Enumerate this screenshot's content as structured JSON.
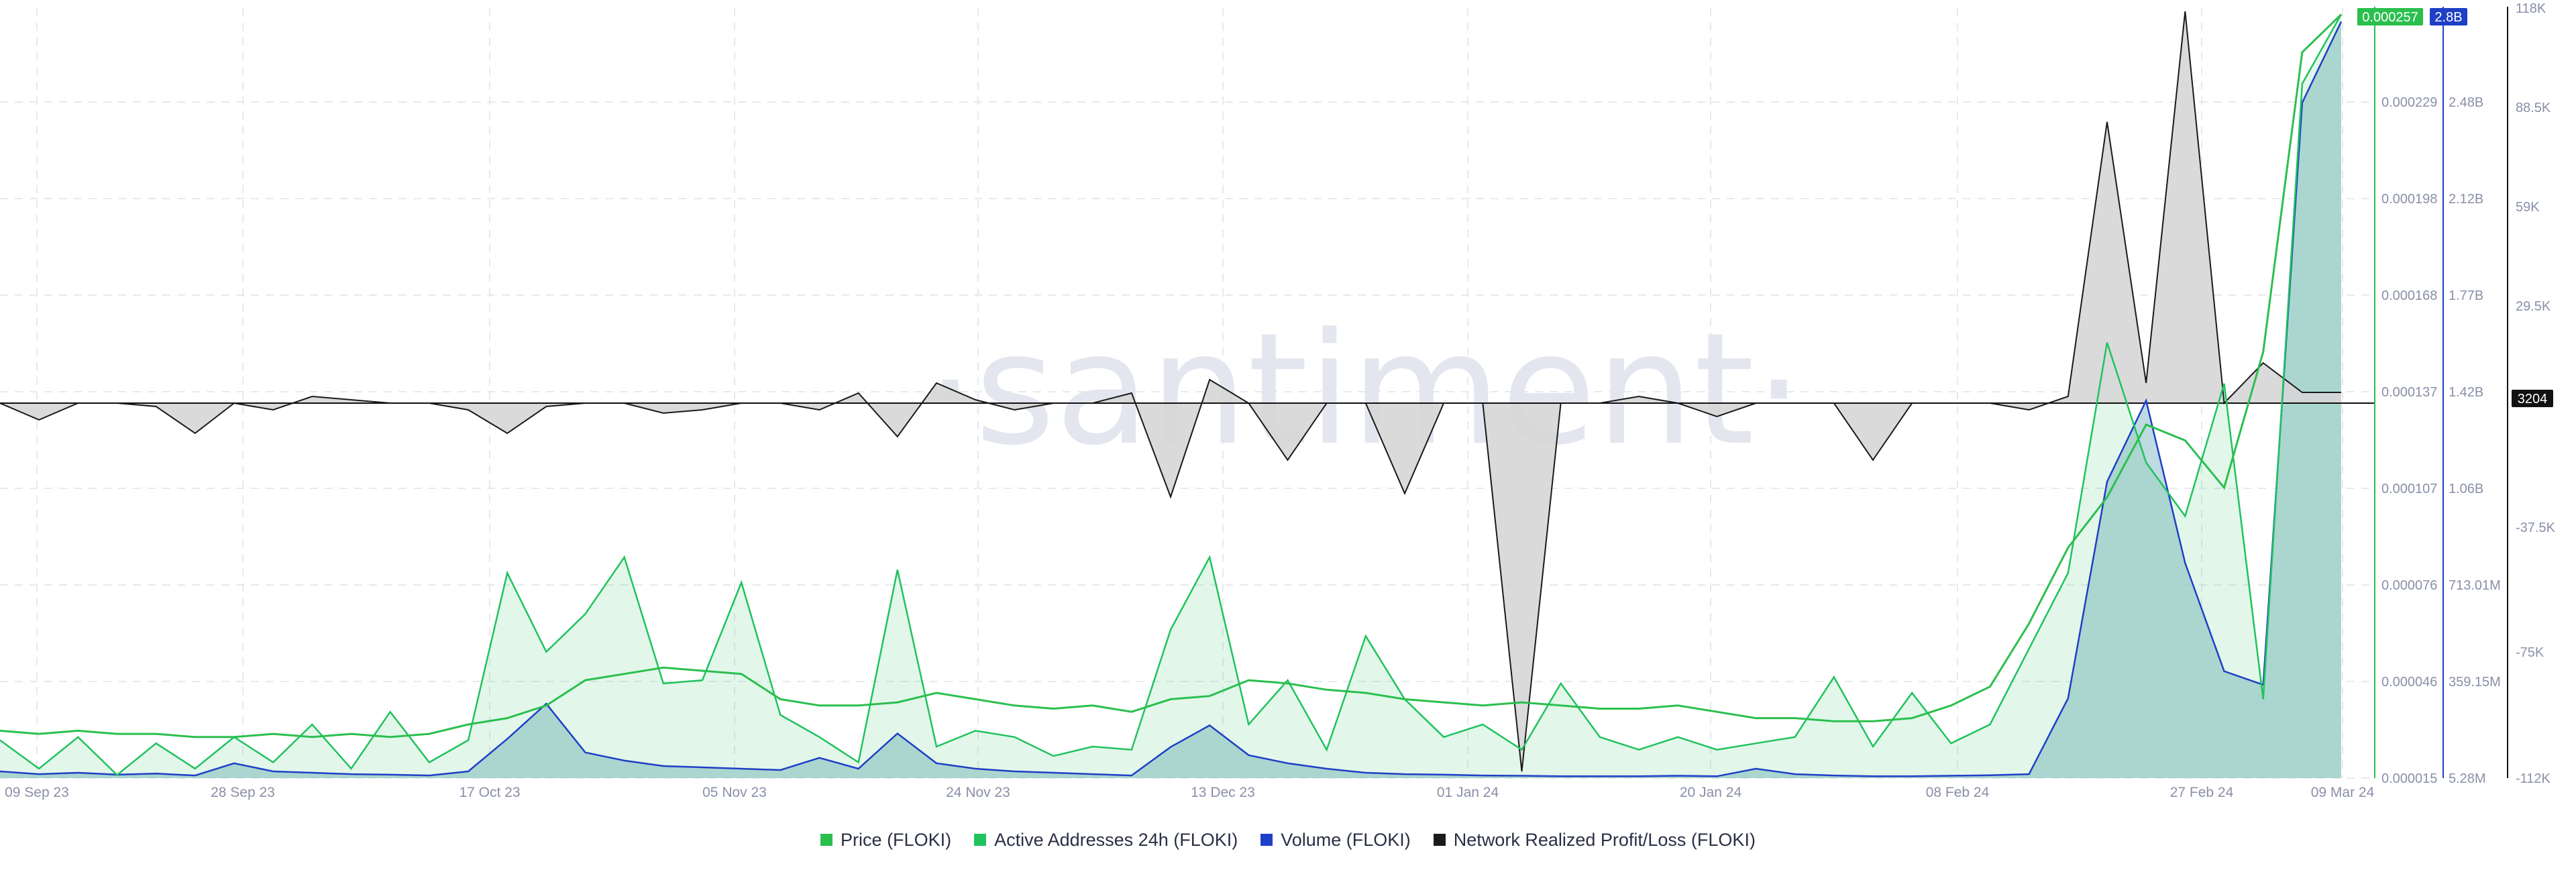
{
  "watermark": "·santiment·",
  "legend": [
    {
      "label": "Price (FLOKI)",
      "color": "#2bbf4e"
    },
    {
      "label": "Active Addresses 24h (FLOKI)",
      "color": "#21c25e"
    },
    {
      "label": "Volume (FLOKI)",
      "color": "#1f3fc7"
    },
    {
      "label": "Network Realized Profit/Loss (FLOKI)",
      "color": "#1a1a1a"
    }
  ],
  "colors": {
    "price": "#2bbf4e",
    "active_addresses": "#21c25e",
    "volume_line": "#1f3fc7",
    "volume_fill": "#b4d3dc",
    "nrpl": "#1a1a1a",
    "nrpl_fill": "#d6d6d6"
  },
  "chart_data": {
    "type": "line",
    "x_ticks": [
      "09 Sep 23",
      "28 Sep 23",
      "17 Oct 23",
      "05 Nov 23",
      "24 Nov 23",
      "13 Dec 23",
      "01 Jan 24",
      "20 Jan 24",
      "08 Feb 24",
      "27 Feb 24",
      "09 Mar 24"
    ],
    "price_axis": {
      "ticks": [
        "0.000015",
        "0.000046",
        "0.000076",
        "0.000107",
        "0.000137",
        "0.000168",
        "0.000198",
        "0.000229"
      ],
      "range": [
        1.5e-05,
        0.000259
      ],
      "current_label": "0.000257"
    },
    "volume_axis": {
      "ticks": [
        "5.28M",
        "359.15M",
        "713.01M",
        "1.06B",
        "1.42B",
        "1.77B",
        "2.12B",
        "2.48B"
      ],
      "range": [
        5280000,
        2850000000
      ],
      "current_label": "2.8B"
    },
    "nrpl_axis": {
      "ticks": [
        "118K",
        "88.5K",
        "59K",
        "29.5K",
        "0",
        "-37.5K",
        "-75K",
        "-112K"
      ],
      "range": [
        -112000,
        118000
      ],
      "current_label": "3204"
    },
    "series": [
      {
        "name": "Price (FLOKI)",
        "key": "price",
        "values": [
          3e-05,
          2.9e-05,
          3e-05,
          2.9e-05,
          2.9e-05,
          2.8e-05,
          2.8e-05,
          2.9e-05,
          2.8e-05,
          2.9e-05,
          2.8e-05,
          2.9e-05,
          3.2e-05,
          3.4e-05,
          3.8e-05,
          4.6e-05,
          4.8e-05,
          5e-05,
          4.9e-05,
          4.8e-05,
          4e-05,
          3.8e-05,
          3.8e-05,
          3.9e-05,
          4.2e-05,
          4e-05,
          3.8e-05,
          3.7e-05,
          3.8e-05,
          3.6e-05,
          4e-05,
          4.1e-05,
          4.6e-05,
          4.5e-05,
          4.3e-05,
          4.2e-05,
          4e-05,
          3.9e-05,
          3.8e-05,
          3.9e-05,
          3.8e-05,
          3.7e-05,
          3.7e-05,
          3.8e-05,
          3.6e-05,
          3.4e-05,
          3.4e-05,
          3.3e-05,
          3.3e-05,
          3.4e-05,
          3.8e-05,
          4.4e-05,
          6.4e-05,
          8.8e-05,
          0.000104,
          0.000127,
          0.000122,
          0.000107,
          0.00015,
          0.000245,
          0.000257
        ]
      },
      {
        "name": "Active Addresses 24h (FLOKI)",
        "key": "active_addresses",
        "values": [
          2.7e-05,
          1.8e-05,
          2.8e-05,
          1.6e-05,
          2.6e-05,
          1.8e-05,
          2.8e-05,
          2e-05,
          3.2e-05,
          1.8e-05,
          3.6e-05,
          2e-05,
          2.7e-05,
          8e-05,
          5.5e-05,
          6.7e-05,
          8.5e-05,
          4.5e-05,
          4.6e-05,
          7.7e-05,
          3.5e-05,
          2.8e-05,
          2e-05,
          8.1e-05,
          2.5e-05,
          3e-05,
          2.8e-05,
          2.2e-05,
          2.5e-05,
          2.4e-05,
          6.2e-05,
          8.5e-05,
          3.2e-05,
          4.6e-05,
          2.4e-05,
          6e-05,
          4e-05,
          2.8e-05,
          3.2e-05,
          2.4e-05,
          4.5e-05,
          2.8e-05,
          2.4e-05,
          2.8e-05,
          2.4e-05,
          2.6e-05,
          2.8e-05,
          4.7e-05,
          2.5e-05,
          4.2e-05,
          2.6e-05,
          3.2e-05,
          5.6e-05,
          8e-05,
          0.000153,
          0.000115,
          9.8e-05,
          0.00014,
          4e-05,
          0.000235,
          0.000257
        ]
      },
      {
        "name": "Volume (FLOKI)",
        "key": "volume",
        "values": [
          30000000,
          20000000,
          25000000,
          18000000,
          22000000,
          15000000,
          60000000,
          30000000,
          25000000,
          20000000,
          18000000,
          15000000,
          30000000,
          150000000,
          280000000,
          100000000,
          70000000,
          50000000,
          45000000,
          40000000,
          35000000,
          80000000,
          40000000,
          170000000,
          60000000,
          40000000,
          30000000,
          25000000,
          20000000,
          15000000,
          120000000,
          200000000,
          90000000,
          60000000,
          40000000,
          25000000,
          20000000,
          18000000,
          15000000,
          14000000,
          12000000,
          12000000,
          12000000,
          14000000,
          12000000,
          40000000,
          20000000,
          15000000,
          12000000,
          12000000,
          14000000,
          16000000,
          20000000,
          300000000,
          1100000000,
          1400000000,
          800000000,
          400000000,
          350000000,
          2500000000,
          2800000000
        ]
      },
      {
        "name": "Network Realized Profit/Loss (FLOKI)",
        "key": "nrpl",
        "values": [
          0,
          -5000,
          0,
          0,
          -1000,
          -9000,
          0,
          -2000,
          2000,
          1000,
          0,
          0,
          -2000,
          -9000,
          -1000,
          0,
          0,
          -3000,
          -2000,
          0,
          0,
          -2000,
          3000,
          -10000,
          6000,
          1000,
          -2000,
          0,
          0,
          3000,
          -28000,
          7000,
          0,
          -17000,
          0,
          0,
          -27000,
          0,
          0,
          -110000,
          0,
          0,
          2000,
          0,
          -4000,
          0,
          0,
          0,
          -17000,
          0,
          0,
          0,
          -2000,
          2000,
          84000,
          6000,
          117000,
          0,
          12000,
          3204,
          3204
        ]
      }
    ]
  }
}
